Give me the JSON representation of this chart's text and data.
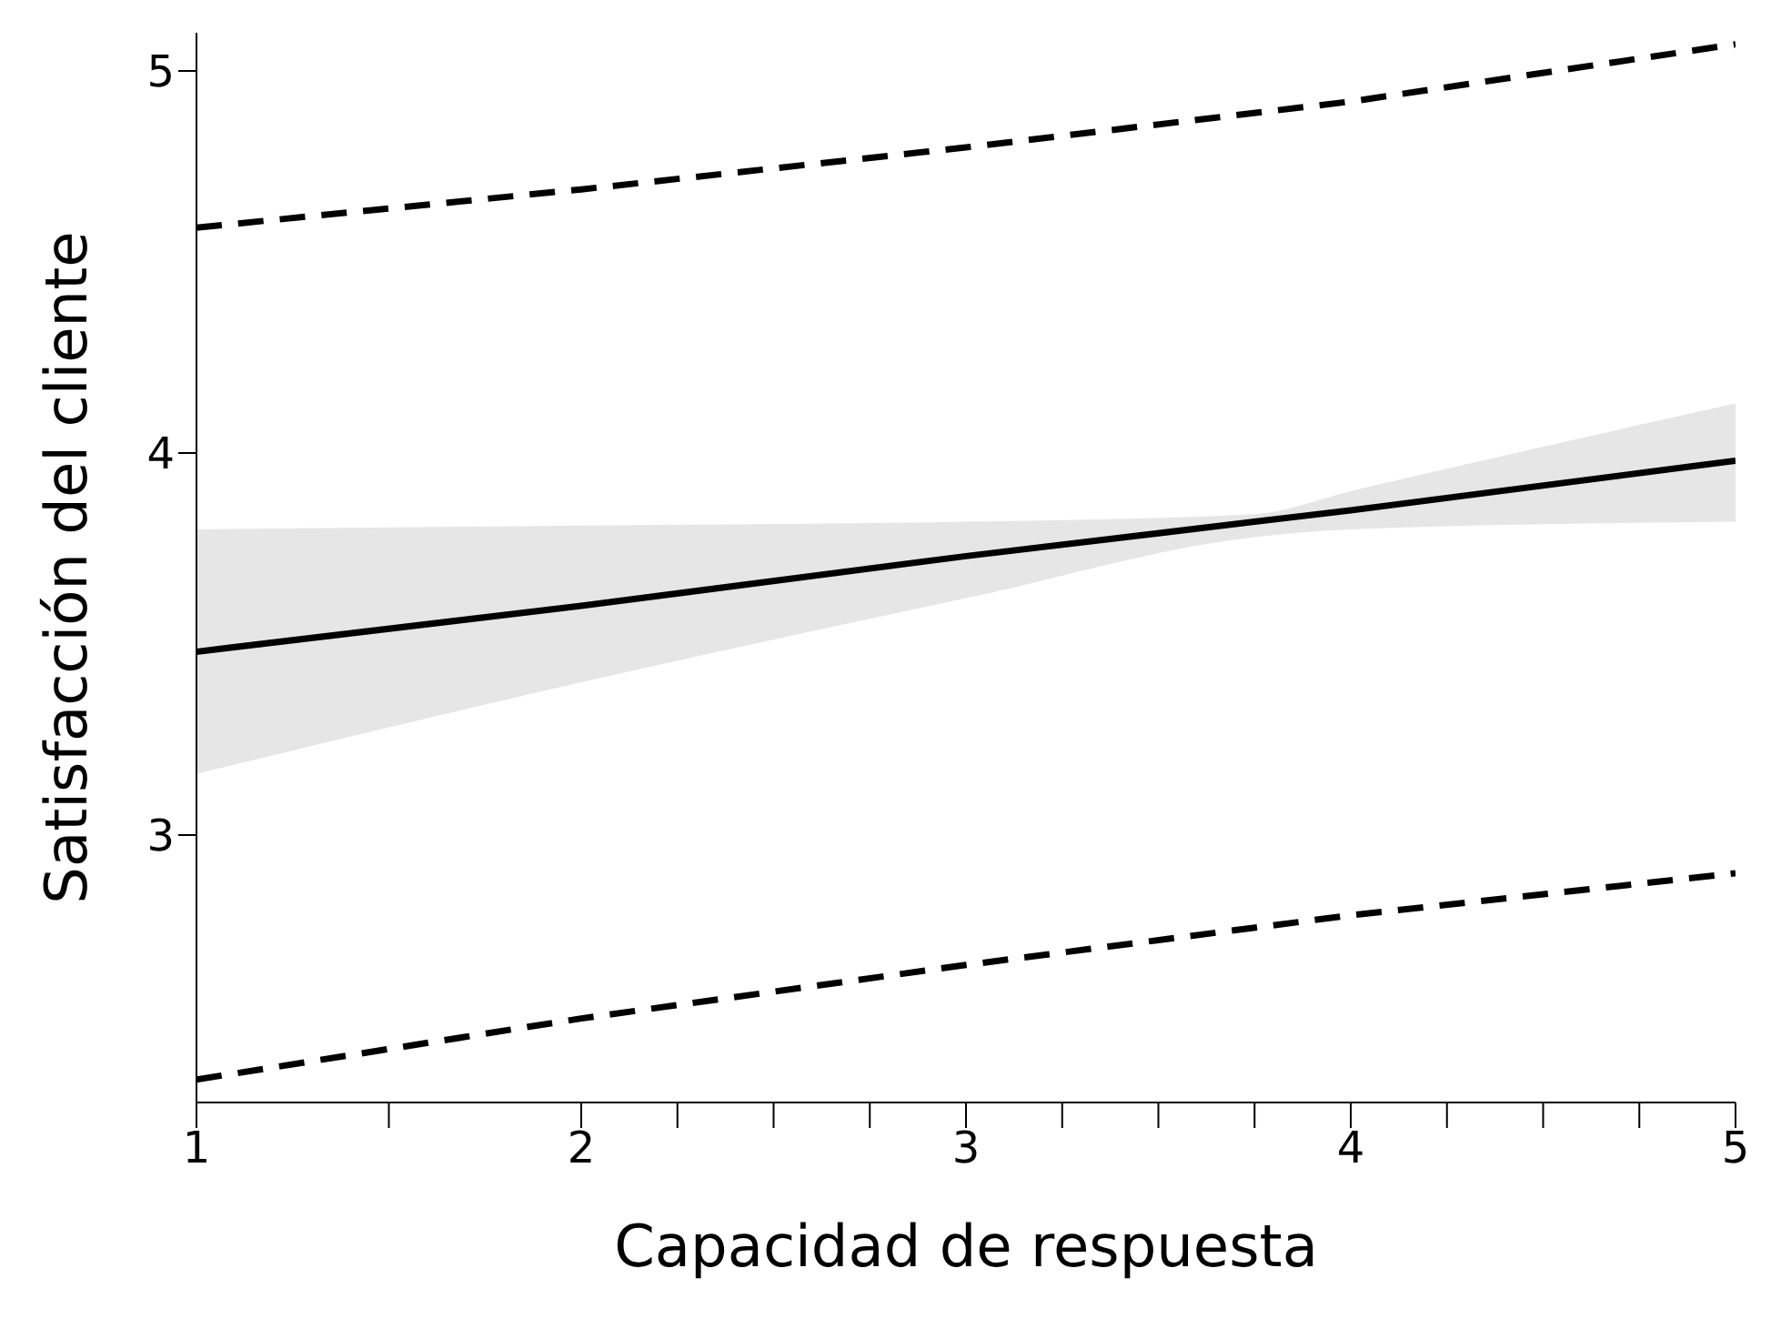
{
  "chart_data": {
    "type": "line",
    "xlabel": "Capacidad de respuesta",
    "ylabel": "Satisfacción del cliente",
    "xlim": [
      1,
      5
    ],
    "ylim": [
      2.3,
      5.1
    ],
    "xticks": [
      1,
      {
        "value": 1.5,
        "label": null
      },
      2,
      {
        "value": 2.25,
        "label": null
      },
      {
        "value": 2.5,
        "label": null
      },
      {
        "value": 2.75,
        "label": null
      },
      3,
      {
        "value": 3.25,
        "label": null
      },
      {
        "value": 3.5,
        "label": null
      },
      {
        "value": 3.75,
        "label": null
      },
      4,
      {
        "value": 4.25,
        "label": null
      },
      {
        "value": 4.5,
        "label": null
      },
      {
        "value": 4.75,
        "label": null
      },
      5
    ],
    "yticks": [
      3,
      4,
      5
    ],
    "grid": false,
    "legend": false,
    "marker": "none",
    "series": [
      {
        "color": "#000000",
        "line_style": "solid",
        "x": [
          1,
          2,
          3,
          3.75,
          4,
          5
        ],
        "values": [
          3.48,
          3.6,
          3.73,
          3.82,
          3.85,
          3.98
        ],
        "lower": [
          3.16,
          3.4,
          3.62,
          3.78,
          3.8,
          3.82
        ],
        "upper": [
          3.8,
          3.81,
          3.82,
          3.84,
          3.9,
          4.13
        ]
      },
      {
        "color": "#000000",
        "line_style": "dashed",
        "x": [
          1,
          2,
          3,
          4,
          5
        ],
        "values": [
          4.59,
          4.69,
          4.8,
          4.92,
          5.07
        ]
      },
      {
        "color": "#000000",
        "line_style": "dashed",
        "x": [
          1,
          2,
          3,
          4,
          5
        ],
        "values": [
          2.36,
          2.52,
          2.66,
          2.79,
          2.9
        ]
      }
    ]
  }
}
